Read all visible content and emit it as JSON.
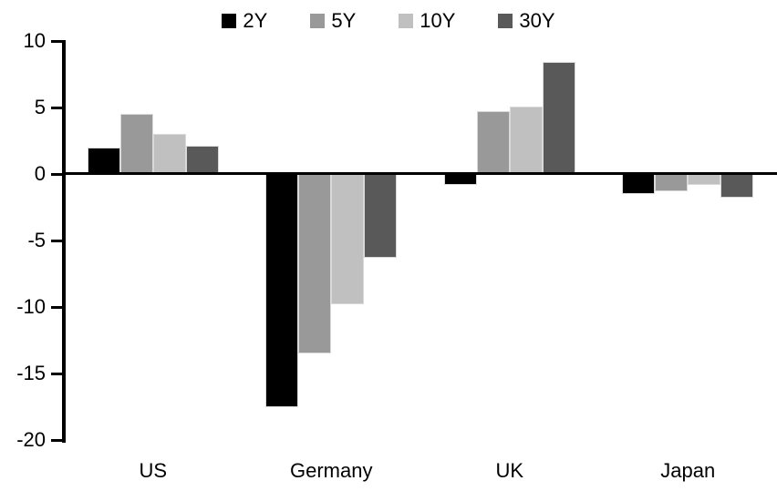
{
  "chart_data": {
    "type": "bar",
    "categories": [
      "US",
      "Germany",
      "UK",
      "Japan"
    ],
    "series": [
      {
        "name": "2Y",
        "color": "#000000",
        "values": [
          2.0,
          -17.5,
          -0.8,
          -1.5
        ]
      },
      {
        "name": "5Y",
        "color": "#999999",
        "values": [
          4.5,
          -13.5,
          4.7,
          -1.3
        ]
      },
      {
        "name": "10Y",
        "color": "#c0c0c0",
        "values": [
          3.0,
          -9.8,
          5.1,
          -0.8
        ]
      },
      {
        "name": "30Y",
        "color": "#595959",
        "values": [
          2.1,
          -6.3,
          8.4,
          -1.8
        ]
      }
    ],
    "ylim": [
      -20,
      10
    ],
    "y_ticks": [
      10,
      5,
      0,
      -5,
      -10,
      -15,
      -20
    ],
    "grid": false,
    "legend_position": "top",
    "axis_color": "#000000",
    "background": "#ffffff"
  }
}
